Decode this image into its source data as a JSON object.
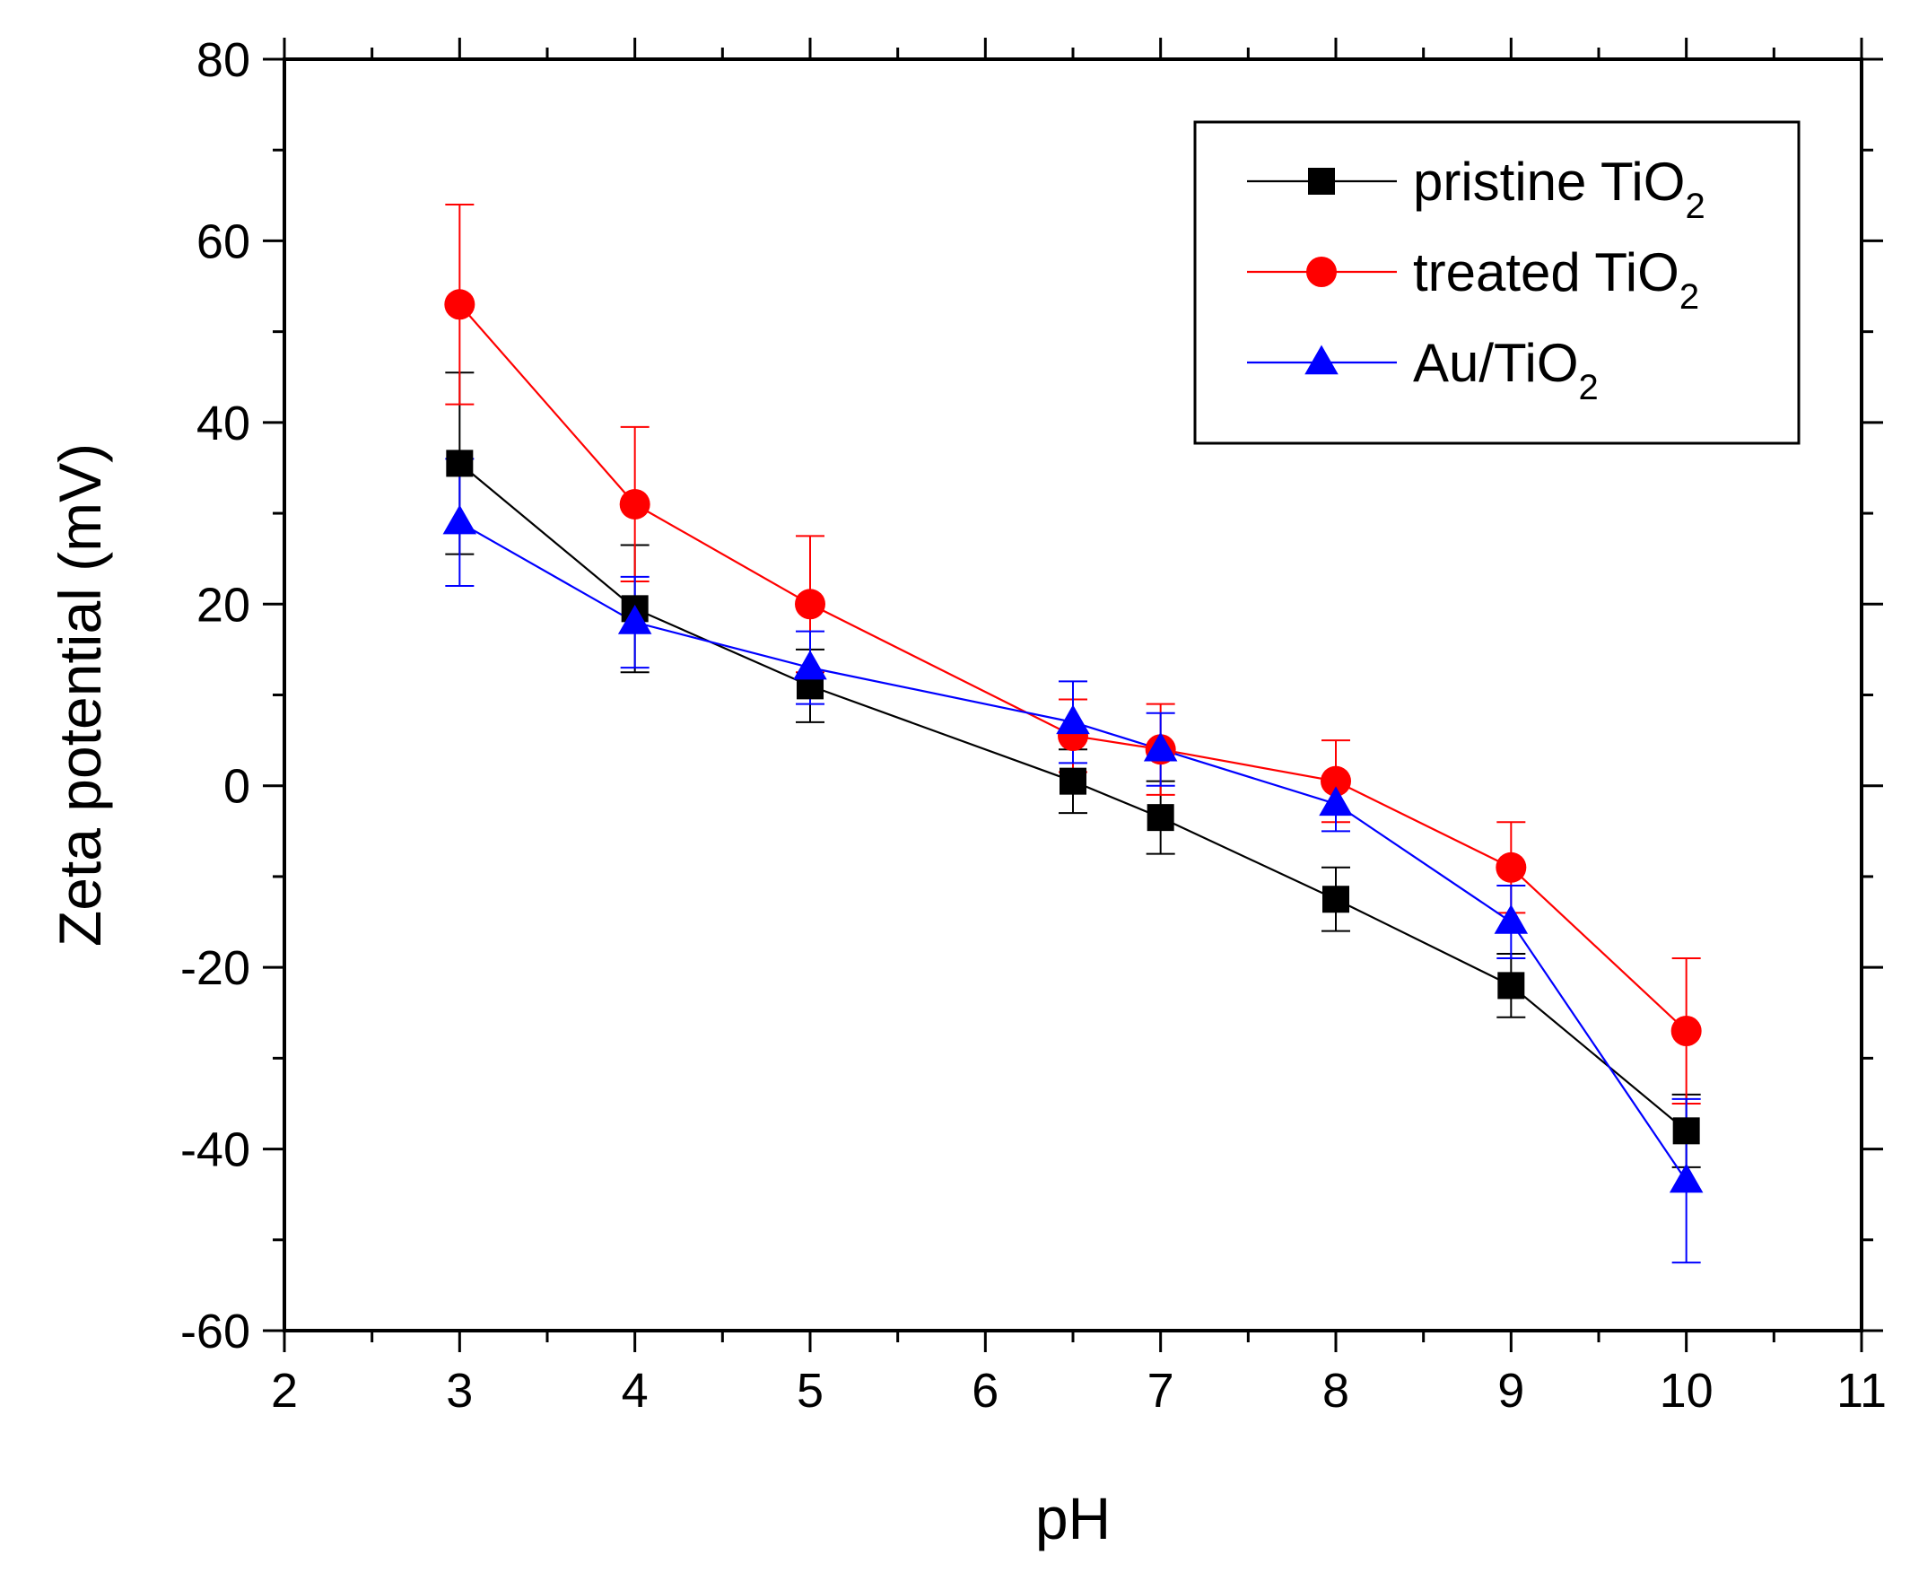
{
  "chart_data": {
    "type": "line",
    "title": "",
    "xlabel": "pH",
    "ylabel": "Zeta potential (mV)",
    "xlim": [
      2,
      11
    ],
    "ylim": [
      -60,
      80
    ],
    "xticks": [
      2,
      3,
      4,
      5,
      6,
      7,
      8,
      9,
      10,
      11
    ],
    "yticks": [
      -60,
      -40,
      -20,
      0,
      20,
      40,
      60,
      80
    ],
    "grid": false,
    "legend_position": "top-right",
    "series": [
      {
        "name": "pristine TiO2",
        "label_main": "pristine TiO",
        "label_sub": "2",
        "color": "#000000",
        "marker": "square",
        "x": [
          3,
          4,
          5,
          6.5,
          7,
          8,
          9,
          10
        ],
        "y": [
          35.5,
          19.5,
          11,
          0.5,
          -3.5,
          -12.5,
          -22,
          -38
        ],
        "err": [
          10,
          7,
          4,
          3.5,
          4,
          3.5,
          3.5,
          4
        ]
      },
      {
        "name": "treated TiO2",
        "label_main": "treated TiO",
        "label_sub": "2",
        "color": "#ff0000",
        "marker": "circle",
        "x": [
          3,
          4,
          5,
          6.5,
          7,
          8,
          9,
          10
        ],
        "y": [
          53,
          31,
          20,
          5.5,
          4,
          0.5,
          -9,
          -27
        ],
        "err": [
          11,
          8.5,
          7.5,
          4,
          5,
          4.5,
          5,
          8
        ]
      },
      {
        "name": "Au/TiO2",
        "label_main": "Au/TiO",
        "label_sub": "2",
        "color": "#0000ff",
        "marker": "triangle",
        "x": [
          3,
          4,
          5,
          6.5,
          7,
          8,
          9,
          10
        ],
        "y": [
          29,
          18,
          13,
          7,
          4,
          -2,
          -15,
          -43.5
        ],
        "err": [
          7,
          5,
          4,
          4.5,
          4,
          3,
          4,
          9
        ]
      }
    ]
  }
}
